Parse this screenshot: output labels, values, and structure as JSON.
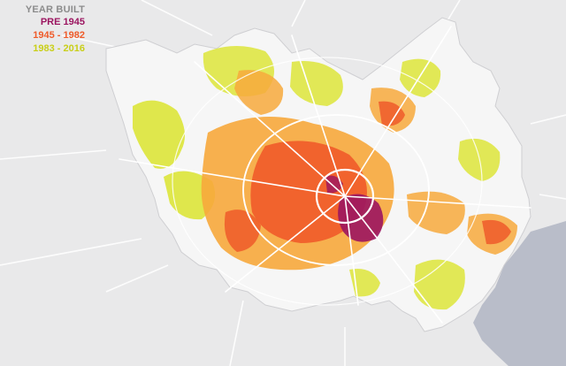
{
  "legend": {
    "title": "YEAR BUILT",
    "title_color": "#8c8c8c",
    "items": [
      {
        "label": "PRE 1945",
        "color": "#9b1560"
      },
      {
        "label": "1945 - 1982",
        "color": "#ef5b2a"
      },
      {
        "label": "1983 - 2016",
        "color": "#c9cf18"
      }
    ]
  },
  "map": {
    "land_color": "#e9e9ea",
    "county_fill": "#f6f6f6",
    "water_color": "#b9bdc9",
    "road_color": "#ffffff",
    "category_colors": {
      "pre_1945": "#9b1560",
      "y1945_1982_dark": "#ef5b2a",
      "y1945_1982_light": "#f7a93c",
      "y1983_2016": "#dde53a"
    }
  }
}
